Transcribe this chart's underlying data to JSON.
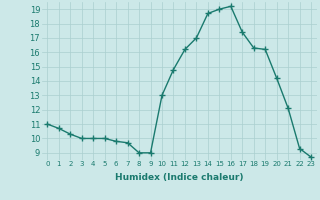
{
  "x": [
    0,
    1,
    2,
    3,
    4,
    5,
    6,
    7,
    8,
    9,
    10,
    11,
    12,
    13,
    14,
    15,
    16,
    17,
    18,
    19,
    20,
    21,
    22,
    23
  ],
  "y": [
    11,
    10.7,
    10.3,
    10,
    10,
    10,
    9.8,
    9.7,
    9,
    9,
    13,
    14.8,
    16.2,
    17,
    18.7,
    19,
    19.2,
    17.4,
    16.3,
    16.2,
    14.2,
    12.1,
    9.3,
    8.7
  ],
  "line_color": "#1a7a6e",
  "marker": "+",
  "background_color": "#cce8e8",
  "grid_color": "#aacfcf",
  "xlabel": "Humidex (Indice chaleur)",
  "xlim": [
    -0.5,
    23.5
  ],
  "ylim": [
    8.5,
    19.5
  ],
  "yticks": [
    9,
    10,
    11,
    12,
    13,
    14,
    15,
    16,
    17,
    18,
    19
  ],
  "xticks": [
    0,
    1,
    2,
    3,
    4,
    5,
    6,
    7,
    8,
    9,
    10,
    11,
    12,
    13,
    14,
    15,
    16,
    17,
    18,
    19,
    20,
    21,
    22,
    23
  ],
  "xtick_labels": [
    "0",
    "1",
    "2",
    "3",
    "4",
    "5",
    "6",
    "7",
    "8",
    "9",
    "10",
    "11",
    "12",
    "13",
    "14",
    "15",
    "16",
    "17",
    "18",
    "19",
    "20",
    "21",
    "22",
    "23"
  ],
  "line_width": 1.0,
  "marker_size": 4,
  "marker_edge_width": 1.0
}
